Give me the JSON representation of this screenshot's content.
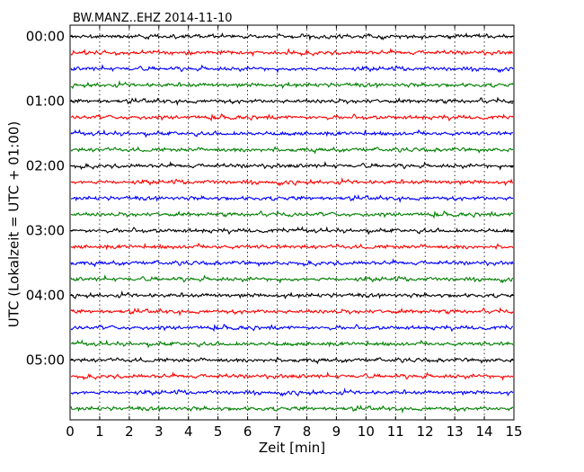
{
  "chart_data": {
    "type": "line",
    "title": "BW.MANZ..EHZ 2014-11-10",
    "xlabel": "Zeit  [min]",
    "ylabel": "UTC (Lokalzeit = UTC + 01:00)",
    "xlim": [
      0,
      15
    ],
    "xticks": [
      "0",
      "1",
      "2",
      "3",
      "4",
      "5",
      "6",
      "7",
      "8",
      "9",
      "10",
      "11",
      "12",
      "13",
      "14",
      "15"
    ],
    "yticks": [
      "00:00",
      "01:00",
      "02:00",
      "03:00",
      "04:00",
      "05:00"
    ],
    "row_interval_minutes": 15,
    "rows": 24,
    "grid": "vertical dotted lines at each minute",
    "series_colors": [
      "#000000",
      "#ff0000",
      "#0000ff",
      "#008000"
    ]
  }
}
